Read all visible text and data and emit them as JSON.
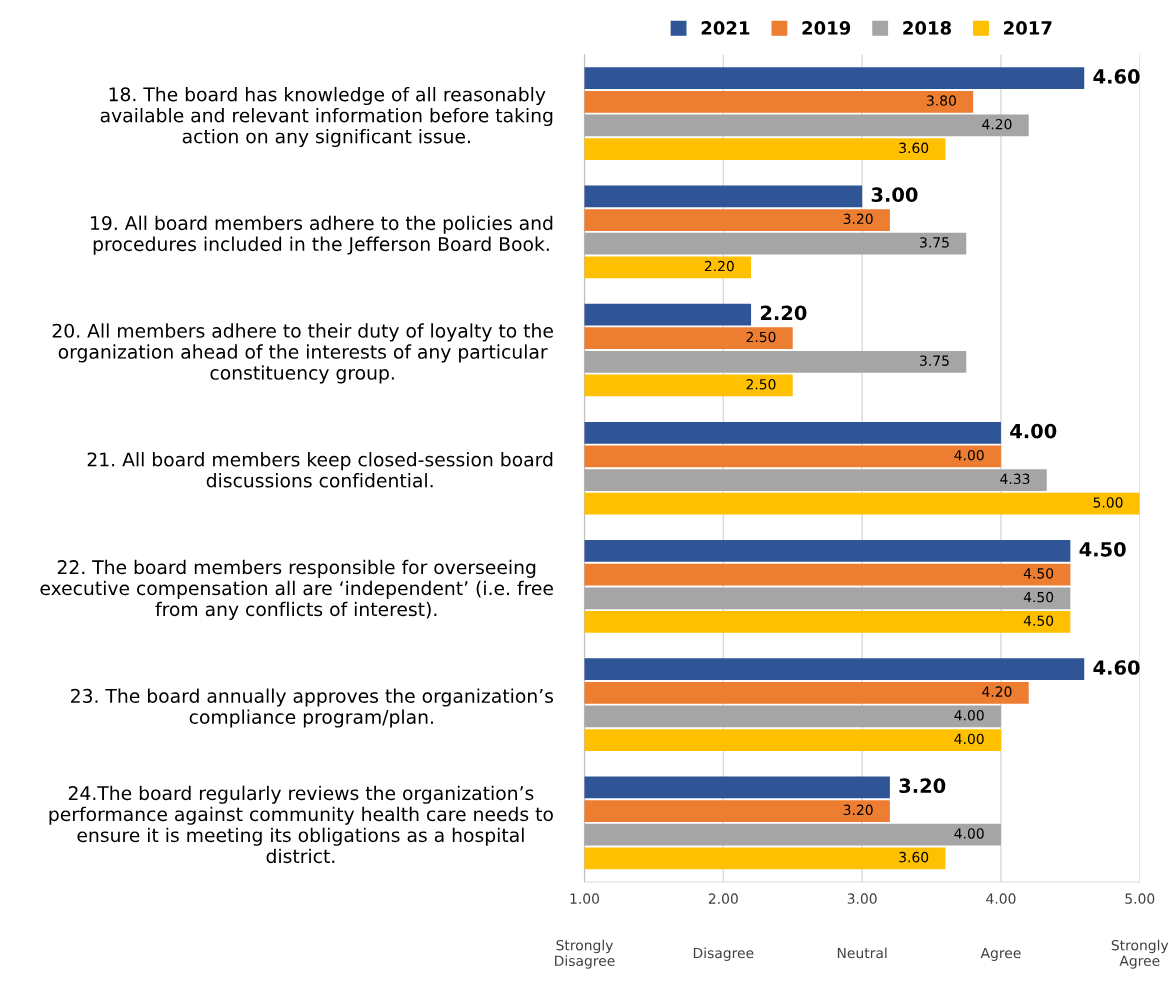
{
  "chart_data": {
    "type": "bar",
    "orientation": "horizontal",
    "categories": [
      "18. The board has knowledge of all reasonably\navailable and relevant information before taking\naction on any significant issue.",
      "19. All board members adhere to the policies and\nprocedures included in the Jefferson Board Book.",
      "20. All members adhere to their duty of loyalty to the\norganization ahead of the interests of any particular\nconstituency group.",
      "21. All board members keep closed-session board\ndiscussions confidential.",
      "22. The board members responsible for overseeing\nexecutive compensation all are ‘independent’ (i.e. free\nfrom any conflicts of interest).",
      "23. The board annually approves the organization’s\ncompliance program/plan.",
      "24.The board regularly reviews the organization’s\nperformance against community health care needs to\nensure it is meeting its obligations as a hospital\ndistrict."
    ],
    "series": [
      {
        "name": "2021",
        "color": "#2f5597",
        "values": [
          4.6,
          3.0,
          2.2,
          4.0,
          4.5,
          4.6,
          3.2
        ],
        "value_labels": [
          "4.60",
          "3.00",
          "2.20",
          "4.00",
          "4.50",
          "4.60",
          "3.20"
        ]
      },
      {
        "name": "2019",
        "color": "#ed7d31",
        "values": [
          3.8,
          3.2,
          2.5,
          4.0,
          4.5,
          4.2,
          3.2
        ],
        "value_labels": [
          "3.80",
          "3.20",
          "2.50",
          "4.00",
          "4.50",
          "4.20",
          "3.20"
        ]
      },
      {
        "name": "2018",
        "color": "#a5a5a5",
        "values": [
          4.2,
          3.75,
          3.75,
          4.33,
          4.5,
          4.0,
          4.0
        ],
        "value_labels": [
          "4.20",
          "3.75",
          "3.75",
          "4.33",
          "4.50",
          "4.00",
          "4.00"
        ]
      },
      {
        "name": "2017",
        "color": "#ffc000",
        "values": [
          3.6,
          2.2,
          2.5,
          5.0,
          4.5,
          4.0,
          3.6
        ],
        "value_labels": [
          "3.60",
          "2.20",
          "2.50",
          "5.00",
          "4.50",
          "4.00",
          "3.60"
        ]
      }
    ],
    "xlim": [
      1,
      5
    ],
    "xticks": [
      {
        "value": 1,
        "label": "1.00"
      },
      {
        "value": 2,
        "label": "2.00"
      },
      {
        "value": 3,
        "label": "3.00"
      },
      {
        "value": 4,
        "label": "4.00"
      },
      {
        "value": 5,
        "label": "5.00"
      }
    ],
    "annotations": [
      "Strongly\nDisagree",
      "Disagree",
      "Neutral",
      "Agree",
      "Strongly\nAgree"
    ],
    "grid": "x",
    "legend": "top"
  }
}
